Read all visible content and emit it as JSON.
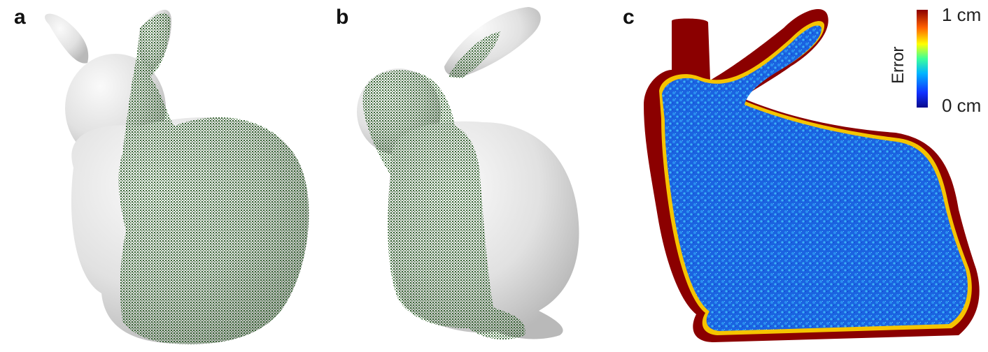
{
  "panels": {
    "a": {
      "label": "a"
    },
    "b": {
      "label": "b"
    },
    "c": {
      "label": "c"
    }
  },
  "colorbar": {
    "title": "Error",
    "max_label": "1 cm",
    "min_label": "0 cm"
  },
  "colors": {
    "mesh": "#e6e6e6",
    "points": "#2e5e2a",
    "error_low": "#1a2cd8",
    "error_high": "#8b0000"
  }
}
